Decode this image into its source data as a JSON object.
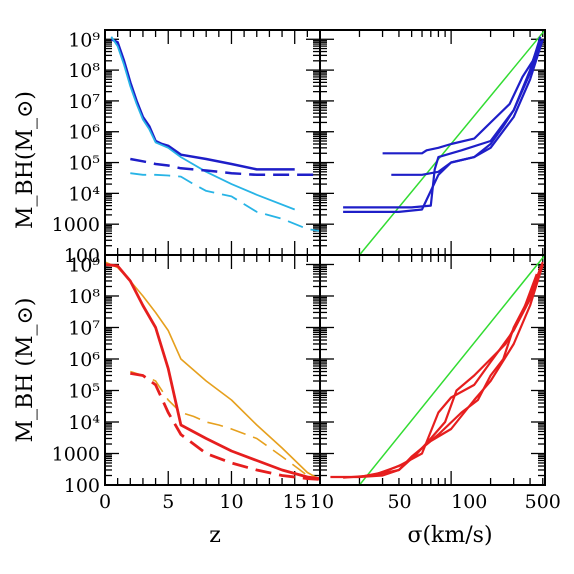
{
  "chart_data": [
    {
      "type": "line",
      "panel": "top-left",
      "xscale": "linear",
      "yscale": "log",
      "xlim": [
        0,
        17
      ],
      "ylim": [
        100,
        2000000000
      ],
      "ylabel": "M_BH(M_⊙)",
      "xlabel": "",
      "series": [
        {
          "color": "#1e1ec8",
          "dash": "solid",
          "width": 2.5,
          "x": [
            0.5,
            1,
            1.5,
            2,
            2.5,
            3,
            3.5,
            4,
            4.5,
            5,
            6,
            8,
            10,
            12,
            15
          ],
          "y": [
            1000000000,
            800000000,
            200000000,
            40000000,
            10000000,
            3000000,
            1500000,
            500000,
            400000,
            350000,
            180000,
            130000,
            90000,
            60000,
            60000
          ]
        },
        {
          "color": "#28b4e6",
          "dash": "solid",
          "width": 1.8,
          "x": [
            0.5,
            1,
            1.5,
            2,
            2.5,
            3,
            3.5,
            4,
            5,
            6,
            8,
            10,
            12,
            15
          ],
          "y": [
            1200000000,
            600000000,
            150000000,
            30000000,
            8000000,
            2500000,
            1200000,
            450000,
            300000,
            150000,
            50000,
            20000,
            9000,
            3000
          ]
        },
        {
          "color": "#1e1ec8",
          "dash": "dashed",
          "width": 2.5,
          "x": [
            2,
            3,
            4,
            5,
            6,
            8,
            10,
            12,
            15,
            17
          ],
          "y": [
            130000,
            110000,
            90000,
            80000,
            65000,
            55000,
            45000,
            40000,
            40000,
            40000
          ]
        },
        {
          "color": "#28b4e6",
          "dash": "dashed",
          "width": 1.8,
          "x": [
            2,
            3,
            4,
            5,
            6,
            7,
            8,
            10,
            12,
            14,
            16,
            17
          ],
          "y": [
            45000,
            40000,
            40000,
            38000,
            35000,
            20000,
            12000,
            8000,
            2500,
            1500,
            700,
            600
          ]
        }
      ]
    },
    {
      "type": "line",
      "panel": "top-right",
      "xscale": "log",
      "yscale": "log",
      "xlim": [
        10,
        520
      ],
      "ylim": [
        100,
        2000000000
      ],
      "xlabel": "",
      "ylabel": "",
      "series": [
        {
          "color": "#32dc32",
          "dash": "solid",
          "width": 1.5,
          "x": [
            20,
            520
          ],
          "y": [
            100,
            2000000000
          ]
        },
        {
          "color": "#1e1ec8",
          "dash": "solid",
          "width": 2.2,
          "x": [
            30,
            60,
            65,
            80,
            100,
            150,
            200,
            280,
            350,
            420,
            480
          ],
          "y": [
            200000,
            200000,
            250000,
            300000,
            400000,
            600000,
            2000000,
            8000000,
            60000000,
            200000000,
            900000000
          ]
        },
        {
          "color": "#1e1ec8",
          "dash": "solid",
          "width": 2.2,
          "x": [
            35,
            60,
            80,
            100,
            150,
            200,
            250,
            300,
            400,
            480
          ],
          "y": [
            40000,
            40000,
            50000,
            100000,
            150000,
            400000,
            1500000,
            5000000,
            80000000,
            800000000
          ]
        },
        {
          "color": "#1e1ec8",
          "dash": "solid",
          "width": 2.2,
          "x": [
            15,
            40,
            60,
            80,
            100,
            150,
            200,
            300,
            400,
            500
          ],
          "y": [
            2500,
            2500,
            3000,
            40000,
            100000,
            150000,
            300000,
            3000000,
            50000000,
            1000000000
          ]
        },
        {
          "color": "#1e1ec8",
          "dash": "solid",
          "width": 2.2,
          "x": [
            15,
            50,
            70,
            75,
            80,
            120,
            200,
            300,
            400,
            480
          ],
          "y": [
            3500,
            3500,
            4000,
            60000,
            150000,
            250000,
            500000,
            5000000,
            100000000,
            1200000000
          ]
        }
      ]
    },
    {
      "type": "line",
      "panel": "bottom-left",
      "xscale": "linear",
      "yscale": "log",
      "xlim": [
        0,
        17
      ],
      "ylim": [
        100,
        2000000000
      ],
      "xlabel": "z",
      "ylabel": "M_BH  (M_⊙)",
      "xticks": [
        "0",
        "5",
        "10",
        "15"
      ],
      "series": [
        {
          "color": "#e6a01e",
          "dash": "solid",
          "width": 1.6,
          "x": [
            0,
            1,
            2,
            3,
            4,
            5,
            6,
            8,
            10,
            12,
            14,
            16,
            17
          ],
          "y": [
            1200000000,
            800000000,
            300000000,
            100000000,
            30000000,
            8000000,
            1000000,
            200000,
            50000,
            8000,
            1500,
            250,
            150
          ]
        },
        {
          "color": "#e6a01e",
          "dash": "dashed",
          "width": 1.6,
          "x": [
            2,
            3,
            4,
            5,
            6,
            7,
            8,
            9,
            10,
            12,
            14,
            16
          ],
          "y": [
            400000,
            300000,
            200000,
            50000,
            20000,
            15000,
            10000,
            8000,
            6000,
            3000,
            800,
            200
          ]
        },
        {
          "color": "#e61e1e",
          "dash": "solid",
          "width": 2.8,
          "x": [
            0,
            1,
            2,
            3,
            4,
            5,
            6,
            8,
            10,
            12,
            14,
            16,
            17
          ],
          "y": [
            1000000000,
            900000000,
            300000000,
            50000000,
            10000000,
            500000,
            8000,
            3000,
            1200,
            600,
            300,
            180,
            160
          ]
        },
        {
          "color": "#e61e1e",
          "dash": "dashed",
          "width": 2.8,
          "x": [
            2,
            3,
            4,
            5,
            6,
            8,
            10,
            12,
            14,
            16,
            17
          ],
          "y": [
            350000,
            300000,
            150000,
            20000,
            4000,
            1000,
            500,
            300,
            200,
            160,
            150
          ]
        }
      ]
    },
    {
      "type": "line",
      "panel": "bottom-right",
      "xscale": "log",
      "yscale": "log",
      "xlim": [
        10,
        520
      ],
      "ylim": [
        100,
        2000000000
      ],
      "xlabel": "σ(km/s)",
      "ylabel": "",
      "xticks": [
        "10",
        "50",
        "100",
        "500"
      ],
      "series": [
        {
          "color": "#32dc32",
          "dash": "solid",
          "width": 1.5,
          "x": [
            20,
            520
          ],
          "y": [
            100,
            2000000000
          ]
        },
        {
          "color": "#e61e1e",
          "dash": "solid",
          "width": 2.2,
          "x": [
            12,
            20,
            30,
            40,
            50,
            70,
            100,
            150,
            200,
            300,
            400,
            500
          ],
          "y": [
            180,
            180,
            200,
            300,
            800,
            2500,
            6000,
            50000,
            200000,
            3000000,
            50000000,
            1000000000
          ]
        },
        {
          "color": "#e61e1e",
          "dash": "solid",
          "width": 2.2,
          "x": [
            15,
            25,
            40,
            60,
            80,
            100,
            150,
            200,
            300,
            400,
            480
          ],
          "y": [
            170,
            200,
            400,
            1000,
            20000,
            60000,
            150000,
            800000,
            8000000,
            80000000,
            800000000
          ]
        },
        {
          "color": "#e61e1e",
          "dash": "solid",
          "width": 2.2,
          "x": [
            20,
            30,
            45,
            60,
            80,
            120,
            160,
            200,
            250,
            300,
            400,
            500
          ],
          "y": [
            180,
            250,
            500,
            1500,
            4000,
            20000,
            50000,
            300000,
            1000000,
            10000000,
            100000000,
            1200000000
          ]
        },
        {
          "color": "#e61e1e",
          "dash": "solid",
          "width": 2.2,
          "x": [
            25,
            40,
            55,
            70,
            90,
            110,
            150,
            200,
            260,
            350,
            450
          ],
          "y": [
            200,
            300,
            1000,
            3000,
            10000,
            100000,
            300000,
            1000000,
            3000000,
            30000000,
            500000000
          ]
        }
      ]
    }
  ],
  "yticks": [
    "100",
    "1000",
    "10⁴",
    "10⁵",
    "10⁶",
    "10⁷",
    "10⁸",
    "10⁹"
  ],
  "ytick_values": [
    100,
    1000,
    10000,
    100000,
    1000000,
    10000000,
    100000000,
    1000000000
  ]
}
